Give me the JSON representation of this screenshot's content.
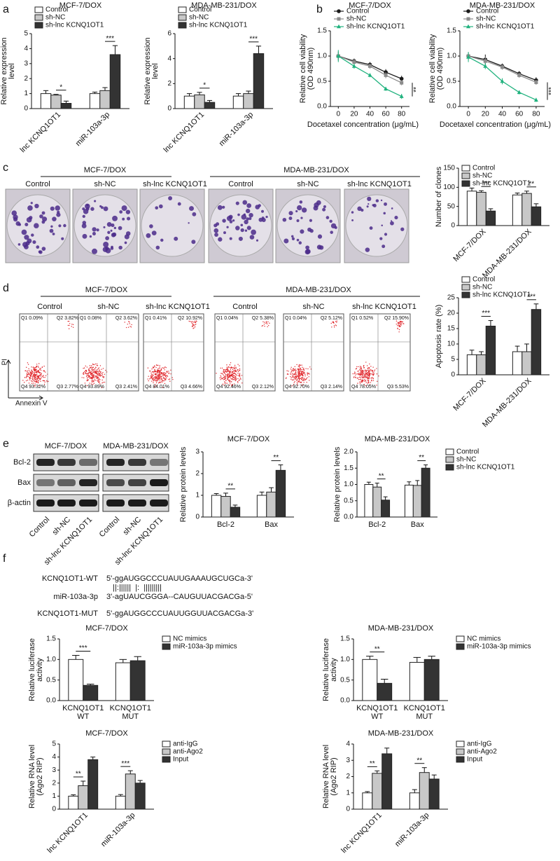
{
  "panel_labels": [
    "a",
    "b",
    "c",
    "d",
    "e",
    "f"
  ],
  "chart_data": [
    {
      "type": "bar",
      "title": "MCF-7/DOX",
      "ylabel": [
        "Relative expression",
        "level"
      ],
      "categories": [
        "lnc KCNQ1OT1",
        "miR-103a-3p"
      ],
      "series": [
        {
          "name": "Control",
          "color": "#ffffff",
          "values": [
            1.0,
            1.0
          ],
          "errors": [
            0.2,
            0.1
          ]
        },
        {
          "name": "sh-NC",
          "color": "#c8c8c8",
          "values": [
            0.9,
            1.2
          ],
          "errors": [
            0.05,
            0.2
          ]
        },
        {
          "name": "sh-lnc KCNQ1OT1",
          "color": "#333333",
          "values": [
            0.35,
            3.6
          ],
          "errors": [
            0.15,
            0.6
          ]
        }
      ],
      "ylim": [
        0,
        5
      ],
      "yticks": [
        0,
        1,
        2,
        3,
        4,
        5
      ],
      "significance": [
        "*",
        "***"
      ],
      "legend": "upper left",
      "xtick_rotation": 45
    },
    {
      "type": "bar",
      "title": "MDA-MB-231/DOX",
      "ylabel": [
        "Relative expression",
        "level"
      ],
      "categories": [
        "lnc KCNQ1OT1",
        "miR-103a-3p"
      ],
      "series": [
        {
          "name": "Control",
          "color": "#ffffff",
          "values": [
            1.0,
            1.0
          ],
          "errors": [
            0.2,
            0.2
          ]
        },
        {
          "name": "sh-NC",
          "color": "#c8c8c8",
          "values": [
            1.1,
            1.2
          ],
          "errors": [
            0.2,
            0.2
          ]
        },
        {
          "name": "sh-lnc KCNQ1OT1",
          "color": "#333333",
          "values": [
            0.5,
            4.4
          ],
          "errors": [
            0.15,
            0.6
          ]
        }
      ],
      "ylim": [
        0,
        6
      ],
      "yticks": [
        0,
        2,
        4,
        6
      ],
      "significance": [
        "*",
        "***"
      ],
      "legend": "upper left",
      "xtick_rotation": 45
    },
    {
      "type": "line",
      "title": "MCF-7/DOX",
      "ylabel": [
        "Relative cell viability",
        "(OD 490nm)"
      ],
      "xlabel": "Docetaxel concentration (μg/mL)",
      "x": [
        0,
        20,
        40,
        60,
        80
      ],
      "xlim": [
        -10,
        90
      ],
      "xticks": [
        0,
        20,
        40,
        60,
        80
      ],
      "series": [
        {
          "name": "Control",
          "color": "#1a1a1a",
          "values": [
            1.0,
            0.9,
            0.83,
            0.68,
            0.55
          ],
          "errors": [
            0.08,
            0.05,
            0.05,
            0.06,
            0.06
          ]
        },
        {
          "name": "sh-NC",
          "color": "#8c8c8c",
          "values": [
            1.0,
            0.88,
            0.8,
            0.62,
            0.47
          ],
          "errors": [
            0.1,
            0.06,
            0.05,
            0.06,
            0.05
          ]
        },
        {
          "name": "sh-lnc KCNQ1OT1",
          "color": "#20b27e",
          "values": [
            1.0,
            0.8,
            0.62,
            0.35,
            0.2
          ],
          "errors": [
            0.12,
            0.05,
            0.04,
            0.04,
            0.05
          ]
        }
      ],
      "ylim": [
        0,
        1.5
      ],
      "yticks": [
        {
          "value": 0,
          "label": "0.0"
        },
        0.5,
        {
          "value": 1,
          "label": "1.0"
        },
        1.5
      ],
      "annotation": "**",
      "legend": "upper left"
    },
    {
      "type": "line",
      "title": "MDA-MB-231/DOX",
      "ylabel": [
        "Relative cell viability",
        "(OD 490nm)"
      ],
      "xlabel": "Docetaxel concentration (μg/mL)",
      "x": [
        0,
        20,
        40,
        60,
        80
      ],
      "xlim": [
        -10,
        90
      ],
      "xticks": [
        0,
        20,
        40,
        60,
        80
      ],
      "series": [
        {
          "name": "Control",
          "color": "#1a1a1a",
          "values": [
            1.0,
            0.93,
            0.8,
            0.65,
            0.52
          ],
          "errors": [
            0.06,
            0.1,
            0.05,
            0.05,
            0.06
          ]
        },
        {
          "name": "sh-NC",
          "color": "#8c8c8c",
          "values": [
            1.0,
            0.9,
            0.78,
            0.62,
            0.48
          ],
          "errors": [
            0.08,
            0.08,
            0.05,
            0.05,
            0.05
          ]
        },
        {
          "name": "sh-lnc KCNQ1OT1",
          "color": "#20b27e",
          "values": [
            0.98,
            0.8,
            0.5,
            0.28,
            0.13
          ],
          "errors": [
            0.1,
            0.06,
            0.06,
            0.04,
            0.04
          ]
        }
      ],
      "ylim": [
        0,
        1.5
      ],
      "yticks": [
        {
          "value": 0,
          "label": "0.0"
        },
        0.5,
        {
          "value": 1,
          "label": "1.0"
        },
        1.5
      ],
      "annotation": "***",
      "legend": "upper left"
    },
    {
      "type": "bar",
      "ylabel": [
        "Number of clones"
      ],
      "categories": [
        "MCF-7/DOX",
        "MDA-MB-231/DOX"
      ],
      "series": [
        {
          "name": "Control",
          "color": "#ffffff",
          "values": [
            90,
            80
          ],
          "errors": [
            8,
            5
          ]
        },
        {
          "name": "sh-NC",
          "color": "#c8c8c8",
          "values": [
            87,
            84
          ],
          "errors": [
            4,
            6
          ]
        },
        {
          "name": "sh-lnc KCNQ1OT1",
          "color": "#333333",
          "values": [
            38,
            49
          ],
          "errors": [
            6,
            8
          ]
        }
      ],
      "ylim": [
        0,
        150
      ],
      "yticks": [
        0,
        50,
        100,
        150
      ],
      "significance": [
        "***",
        "**"
      ],
      "legend": "upper left",
      "xtick_rotation": 45
    },
    {
      "type": "bar",
      "ylabel": [
        "Apoptosis rate (%)"
      ],
      "categories": [
        "MCF-7/DOX",
        "MDA-MB-231/DOX"
      ],
      "series": [
        {
          "name": "Control",
          "color": "#ffffff",
          "values": [
            6.5,
            7.5
          ],
          "errors": [
            1.5,
            1.8
          ]
        },
        {
          "name": "sh-NC",
          "color": "#c8c8c8",
          "values": [
            6.5,
            7.5
          ],
          "errors": [
            1.0,
            2.5
          ]
        },
        {
          "name": "sh-lnc KCNQ1OT1",
          "color": "#333333",
          "values": [
            15.8,
            21.2
          ],
          "errors": [
            1.8,
            1.8
          ]
        }
      ],
      "ylim": [
        0,
        25
      ],
      "yticks": [
        0,
        5,
        10,
        15,
        20,
        25
      ],
      "significance": [
        "***",
        "***"
      ],
      "legend": "upper left",
      "xtick_rotation": 45
    },
    {
      "type": "bar",
      "title": "MCF-7/DOX",
      "ylabel": [
        "Relative protein levels"
      ],
      "categories": [
        "Bcl-2",
        "Bax"
      ],
      "series": [
        {
          "color": "#ffffff",
          "values": [
            1.0,
            1.0
          ],
          "errors": [
            0.08,
            0.15
          ]
        },
        {
          "color": "#c8c8c8",
          "values": [
            0.95,
            1.15
          ],
          "errors": [
            0.15,
            0.2
          ]
        },
        {
          "color": "#333333",
          "values": [
            0.45,
            2.15
          ],
          "errors": [
            0.1,
            0.25
          ]
        }
      ],
      "ylim": [
        0,
        3
      ],
      "yticks": [
        0,
        1,
        2,
        3
      ],
      "significance": [
        "**",
        "**"
      ]
    },
    {
      "type": "bar",
      "title": "MDA-MB-231/DOX",
      "ylabel": [
        "Relative protein levels"
      ],
      "categories": [
        "Bcl-2",
        "Bax"
      ],
      "series": [
        {
          "name": "Control",
          "color": "#ffffff",
          "values": [
            1.0,
            0.98
          ],
          "errors": [
            0.07,
            0.1
          ]
        },
        {
          "name": "sh-NC",
          "color": "#c8c8c8",
          "values": [
            0.92,
            0.97
          ],
          "errors": [
            0.12,
            0.15
          ]
        },
        {
          "name": "sh-lnc KCNQ1OT1",
          "color": "#333333",
          "values": [
            0.52,
            1.5
          ],
          "errors": [
            0.1,
            0.1
          ]
        }
      ],
      "ylim": [
        0,
        2
      ],
      "yticks": [
        {
          "value": 0,
          "label": "0.0"
        },
        0.5,
        {
          "value": 1,
          "label": "1.0"
        },
        1.5,
        {
          "value": 2,
          "label": "2.0"
        }
      ],
      "significance": [
        "**",
        "**"
      ],
      "legend": "right"
    },
    {
      "type": "bar",
      "title": "MCF-7/DOX",
      "ylabel": [
        "Relative luciferase",
        "activity"
      ],
      "categories": [
        [
          "KCNQ1OT1",
          "WT"
        ],
        [
          "KCNQ1OT1",
          "MUT"
        ]
      ],
      "series": [
        {
          "name": "NC mimics",
          "color": "#ffffff",
          "values": [
            1.0,
            0.92
          ],
          "errors": [
            0.1,
            0.08
          ]
        },
        {
          "name": "miR-103a-3p mimics",
          "color": "#333333",
          "values": [
            0.37,
            0.97
          ],
          "errors": [
            0.03,
            0.1
          ]
        }
      ],
      "ylim": [
        0,
        1.5
      ],
      "yticks": [
        {
          "value": 0,
          "label": "0.0"
        },
        0.5,
        {
          "value": 1,
          "label": "1.0"
        },
        1.5
      ],
      "significance": [
        "***",
        null
      ],
      "legend": "right"
    },
    {
      "type": "bar",
      "title": "MDA-MB-231/DOX",
      "ylabel": [
        "Relative luciferase",
        "activity"
      ],
      "categories": [
        [
          "KCNQ1OT1",
          "WT"
        ],
        [
          "KCNQ1OT1",
          "MUT"
        ]
      ],
      "series": [
        {
          "name": "NC mimics",
          "color": "#ffffff",
          "values": [
            1.0,
            0.93
          ],
          "errors": [
            0.08,
            0.12
          ]
        },
        {
          "name": "miR-103a-3p mimics",
          "color": "#333333",
          "values": [
            0.42,
            1.0
          ],
          "errors": [
            0.1,
            0.08
          ]
        }
      ],
      "ylim": [
        0,
        1.5
      ],
      "yticks": [
        {
          "value": 0,
          "label": "0.0"
        },
        0.5,
        {
          "value": 1,
          "label": "1.0"
        },
        1.5
      ],
      "significance": [
        "**",
        null
      ],
      "legend": "right"
    },
    {
      "type": "bar",
      "title": "MCF-7/DOX",
      "ylabel": [
        "Relative RNA level",
        "(Ago2 RIP)"
      ],
      "categories": [
        "lnc KCNQ1OT1",
        "miR-103a-3p"
      ],
      "series": [
        {
          "name": "anti-IgG",
          "color": "#ffffff",
          "values": [
            1.0,
            1.0
          ],
          "errors": [
            0.1,
            0.12
          ]
        },
        {
          "name": "anti-Ago2",
          "color": "#c8c8c8",
          "values": [
            1.8,
            2.7
          ],
          "errors": [
            0.35,
            0.25
          ]
        },
        {
          "name": "Input",
          "color": "#333333",
          "values": [
            3.8,
            2.0
          ],
          "errors": [
            0.2,
            0.2
          ]
        }
      ],
      "ylim": [
        0,
        5
      ],
      "yticks": [
        0,
        1,
        2,
        3,
        4,
        5
      ],
      "significance": [
        "**",
        "***"
      ],
      "legend": "right",
      "xtick_rotation": 45
    },
    {
      "type": "bar",
      "title": "MDA-MB-231/DOX",
      "ylabel": [
        "Relative RNA level",
        "(Ago2 RIP)"
      ],
      "categories": [
        "lnc KCNQ1OT1",
        "miR-103a-3p"
      ],
      "series": [
        {
          "name": "anti-IgG",
          "color": "#ffffff",
          "values": [
            1.0,
            1.0
          ],
          "errors": [
            0.08,
            0.2
          ]
        },
        {
          "name": "anti-Ago2",
          "color": "#c8c8c8",
          "values": [
            2.2,
            2.25
          ],
          "errors": [
            0.15,
            0.3
          ]
        },
        {
          "name": "Input",
          "color": "#333333",
          "values": [
            3.4,
            1.85
          ],
          "errors": [
            0.35,
            0.25
          ]
        }
      ],
      "ylim": [
        0,
        4
      ],
      "yticks": [
        0,
        1,
        2,
        3,
        4
      ],
      "significance": [
        "**",
        "**"
      ],
      "legend": "right",
      "xtick_rotation": 45
    }
  ],
  "colony": {
    "groups": [
      "MCF-7/DOX",
      "MDA-MB-231/DOX"
    ],
    "labels": [
      "Control",
      "sh-NC",
      "sh-lnc KCNQ1OT1",
      "Control",
      "sh-NC",
      "sh-lnc KCNQ1OT1"
    ]
  },
  "flow": {
    "groups": [
      "MCF-7/DOX",
      "MDA-MB-231/DOX"
    ],
    "labels": [
      "Control",
      "sh-NC",
      "sh-lnc KCNQ1OT1",
      "Control",
      "sh-NC",
      "sh-lnc KCNQ1OT1"
    ],
    "quadrants": [
      [
        "Q1 0.09%",
        "Q2 3.82%",
        "Q4 93.32%",
        "Q3 2.77%"
      ],
      [
        "Q1 0.08%",
        "Q2 3.62%",
        "Q4 93.89%",
        "Q3 2.41%"
      ],
      [
        "Q1 0.41%",
        "Q2 10.92%",
        "Q4 84.01%",
        "Q3 4.66%"
      ],
      [
        "Q1 0.04%",
        "Q2 5.38%",
        "Q4 92.46%",
        "Q3 2.12%"
      ],
      [
        "Q1 0.04%",
        "Q2 5.12%",
        "Q4 92.70%",
        "Q3 2.14%"
      ],
      [
        "Q1 0.52%",
        "Q2 15.90%",
        "Q4 78.05%",
        "Q3 5.53%"
      ]
    ],
    "y_axis": "PI",
    "x_axis": "Annexin V"
  },
  "western": {
    "groups": [
      "MCF-7/DOX",
      "MDA-MB-231/DOX"
    ],
    "rows": [
      "Bcl-2",
      "Bax",
      "β-actin"
    ],
    "lanes": [
      "Control",
      "sh-NC",
      "sh-lnc KCNQ1OT1",
      "Control",
      "sh-NC",
      "sh-lnc KCNQ1OT1"
    ]
  },
  "sequences": {
    "rows": [
      {
        "name": "KCNQ1OT1-WT",
        "seq": "5'-ggAUGGCCCUAUUGAAAUGCUGCa-3'"
      },
      {
        "name": "miR-103a-3p",
        "seq": "3'-agUAUCGGGA--CAUGUUACGACGa-5'"
      },
      {
        "name": "KCNQ1OT1-MUT",
        "seq": "5'-ggAUGGCCCUAUUGGUUACGACGa-3'"
      }
    ],
    "pairing": "   ||:||||||  |:  |||||||||"
  }
}
